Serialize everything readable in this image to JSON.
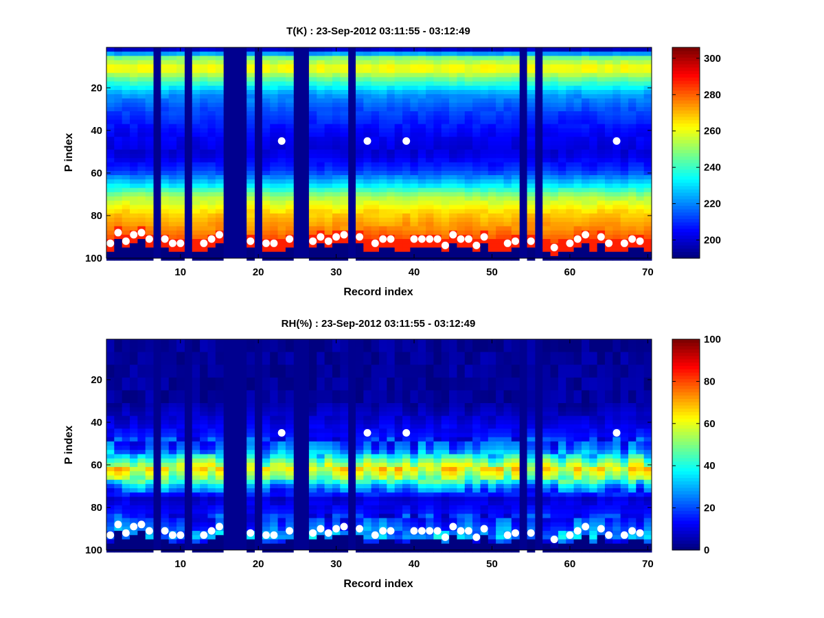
{
  "chart_data": [
    {
      "type": "heatmap",
      "title": "T(K) : 23-Sep-2012 03:11:55 - 03:12:49",
      "xlabel": "Record index",
      "ylabel": "P index",
      "xlim": [
        0.5,
        70.5
      ],
      "ylim": [
        1,
        100
      ],
      "y_reversed": true,
      "xticks": [
        10,
        20,
        30,
        40,
        50,
        60,
        70
      ],
      "yticks": [
        20,
        40,
        60,
        80,
        100
      ],
      "colorbar": {
        "range": [
          190,
          306
        ],
        "ticks": [
          200,
          220,
          240,
          260,
          280,
          300
        ],
        "colormap": "jet"
      },
      "missing_records": [
        7,
        11,
        16,
        17,
        18,
        20,
        25,
        26,
        32,
        54,
        56
      ],
      "background_color": "#00008f",
      "profile_levels": [
        {
          "p": 1,
          "value": 198
        },
        {
          "p": 5,
          "value": 248
        },
        {
          "p": 10,
          "value": 264
        },
        {
          "p": 15,
          "value": 245
        },
        {
          "p": 22,
          "value": 222
        },
        {
          "p": 30,
          "value": 212
        },
        {
          "p": 40,
          "value": 204
        },
        {
          "p": 50,
          "value": 200
        },
        {
          "p": 58,
          "value": 210
        },
        {
          "p": 65,
          "value": 232
        },
        {
          "p": 70,
          "value": 252
        },
        {
          "p": 78,
          "value": 268
        },
        {
          "p": 85,
          "value": 276
        },
        {
          "p": 92,
          "value": 285
        },
        {
          "p": 100,
          "value": 292
        }
      ]
    },
    {
      "type": "heatmap",
      "title": "RH(%) : 23-Sep-2012 03:11:55 - 03:12:49",
      "xlabel": "Record index",
      "ylabel": "P index",
      "xlim": [
        0.5,
        70.5
      ],
      "ylim": [
        1,
        100
      ],
      "y_reversed": true,
      "xticks": [
        10,
        20,
        30,
        40,
        50,
        60,
        70
      ],
      "yticks": [
        20,
        40,
        60,
        80,
        100
      ],
      "colorbar": {
        "range": [
          0,
          100
        ],
        "ticks": [
          0,
          20,
          40,
          60,
          80,
          100
        ],
        "colormap": "jet"
      },
      "missing_records": [
        7,
        11,
        16,
        17,
        18,
        20,
        25,
        26,
        32,
        54,
        56
      ],
      "background_color": "#00008f",
      "profile_levels": [
        {
          "p": 1,
          "value": 2
        },
        {
          "p": 30,
          "value": 3
        },
        {
          "p": 38,
          "value": 8
        },
        {
          "p": 45,
          "value": 14
        },
        {
          "p": 52,
          "value": 22
        },
        {
          "p": 57,
          "value": 45
        },
        {
          "p": 61,
          "value": 62
        },
        {
          "p": 65,
          "value": 50
        },
        {
          "p": 69,
          "value": 28
        },
        {
          "p": 75,
          "value": 8
        },
        {
          "p": 82,
          "value": 14
        },
        {
          "p": 88,
          "value": 22
        },
        {
          "p": 93,
          "value": 30
        },
        {
          "p": 97,
          "value": 5
        },
        {
          "p": 100,
          "value": 3
        }
      ]
    }
  ],
  "surface_markers": [
    {
      "record": 1,
      "p": 93
    },
    {
      "record": 2,
      "p": 88
    },
    {
      "record": 3,
      "p": 92
    },
    {
      "record": 4,
      "p": 89
    },
    {
      "record": 5,
      "p": 88
    },
    {
      "record": 6,
      "p": 91
    },
    {
      "record": 8,
      "p": 91
    },
    {
      "record": 9,
      "p": 93
    },
    {
      "record": 10,
      "p": 93
    },
    {
      "record": 13,
      "p": 93
    },
    {
      "record": 14,
      "p": 91
    },
    {
      "record": 15,
      "p": 89
    },
    {
      "record": 19,
      "p": 92
    },
    {
      "record": 21,
      "p": 93
    },
    {
      "record": 22,
      "p": 93
    },
    {
      "record": 24,
      "p": 91
    },
    {
      "record": 27,
      "p": 92
    },
    {
      "record": 28,
      "p": 90
    },
    {
      "record": 29,
      "p": 92
    },
    {
      "record": 30,
      "p": 90
    },
    {
      "record": 31,
      "p": 89
    },
    {
      "record": 33,
      "p": 90
    },
    {
      "record": 35,
      "p": 93
    },
    {
      "record": 36,
      "p": 91
    },
    {
      "record": 37,
      "p": 91
    },
    {
      "record": 40,
      "p": 91
    },
    {
      "record": 41,
      "p": 91
    },
    {
      "record": 42,
      "p": 91
    },
    {
      "record": 43,
      "p": 91
    },
    {
      "record": 44,
      "p": 94
    },
    {
      "record": 45,
      "p": 89
    },
    {
      "record": 46,
      "p": 91
    },
    {
      "record": 47,
      "p": 91
    },
    {
      "record": 48,
      "p": 94
    },
    {
      "record": 49,
      "p": 90
    },
    {
      "record": 52,
      "p": 93
    },
    {
      "record": 53,
      "p": 92
    },
    {
      "record": 55,
      "p": 92
    },
    {
      "record": 58,
      "p": 95
    },
    {
      "record": 60,
      "p": 93
    },
    {
      "record": 61,
      "p": 91
    },
    {
      "record": 62,
      "p": 89
    },
    {
      "record": 64,
      "p": 90
    },
    {
      "record": 65,
      "p": 93
    },
    {
      "record": 67,
      "p": 93
    },
    {
      "record": 68,
      "p": 91
    },
    {
      "record": 69,
      "p": 92
    }
  ],
  "mid_markers": [
    {
      "record": 23,
      "p": 45
    },
    {
      "record": 34,
      "p": 45
    },
    {
      "record": 39,
      "p": 45
    },
    {
      "record": 66,
      "p": 45
    }
  ]
}
